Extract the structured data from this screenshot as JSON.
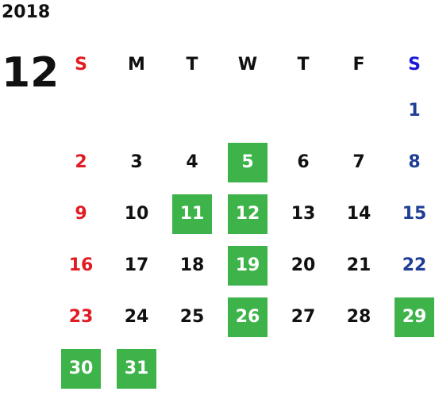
{
  "calendar": {
    "year": "2018",
    "month": "12",
    "weekdays": [
      "S",
      "M",
      "T",
      "W",
      "T",
      "F",
      "S"
    ],
    "start_offset": 6,
    "days_in_month": 31,
    "highlighted_days": [
      5,
      11,
      12,
      19,
      26,
      29,
      30,
      31
    ]
  },
  "colors": {
    "sunday": "#e11b22",
    "saturday": "#1f3f97",
    "saturday_header": "#1a1ad6",
    "weekday": "#111111",
    "highlight_bg": "#3db34a",
    "highlight_text": "#ffffff"
  }
}
